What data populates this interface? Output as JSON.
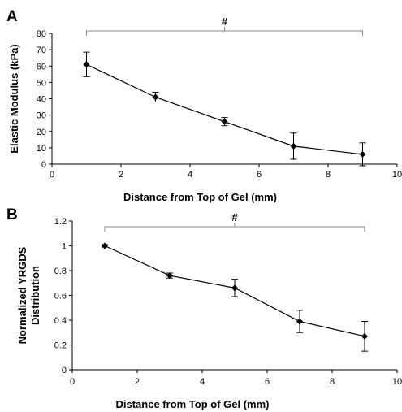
{
  "chart_data": [
    {
      "type": "line",
      "panel_label": "A",
      "xlabel": "Distance from Top of Gel (mm)",
      "ylabel": "Elastic Modulus (kPa)",
      "xlim": [
        0,
        10
      ],
      "ylim": [
        0,
        80
      ],
      "x_ticks": [
        "0",
        "2",
        "4",
        "6",
        "8",
        "10"
      ],
      "y_ticks": [
        "0",
        "10",
        "20",
        "30",
        "40",
        "50",
        "60",
        "70",
        "80"
      ],
      "x": [
        1,
        3,
        5,
        7,
        9
      ],
      "y": [
        61,
        41,
        26,
        11,
        6
      ],
      "error": [
        7.5,
        3,
        2.5,
        8,
        7
      ],
      "significance": {
        "label": "#",
        "x_start": 1,
        "x_end": 9
      }
    },
    {
      "type": "line",
      "panel_label": "B",
      "xlabel": "Distance from Top of Gel (mm)",
      "ylabel": [
        "Normalized YRGDS",
        "Distribution"
      ],
      "xlim": [
        0,
        10
      ],
      "ylim": [
        0,
        1.2
      ],
      "x_ticks": [
        "0",
        "2",
        "4",
        "6",
        "8",
        "10"
      ],
      "y_ticks": [
        "0",
        "0.2",
        "0.4",
        "0.6",
        "0.8",
        "1",
        "1.2"
      ],
      "x": [
        1,
        3,
        5,
        7,
        9
      ],
      "y": [
        1.0,
        0.76,
        0.66,
        0.39,
        0.27
      ],
      "error": [
        0.01,
        0.02,
        0.07,
        0.09,
        0.12
      ],
      "significance": {
        "label": "#",
        "x_start": 1,
        "x_end": 9
      }
    }
  ]
}
